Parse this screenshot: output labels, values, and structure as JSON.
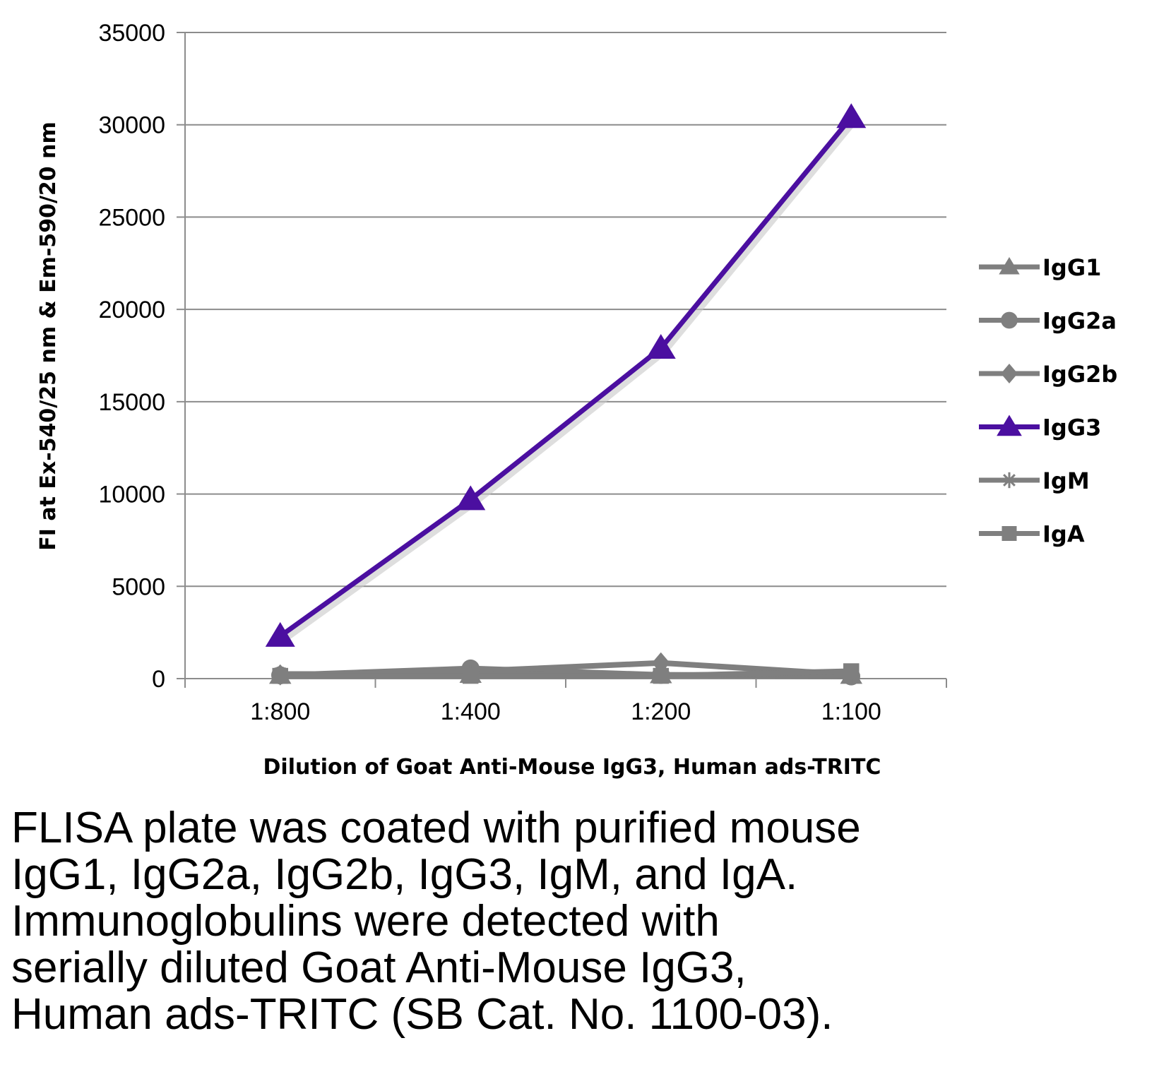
{
  "chart_data": {
    "type": "line",
    "categories": [
      "1:800",
      "1:400",
      "1:200",
      "1:100"
    ],
    "ylabel": "FI at Ex-540/25 nm & Em-590/20 nm",
    "xlabel": "Dilution of Goat Anti-Mouse IgG3, Human ads-TRITC",
    "ylim": [
      0,
      35000
    ],
    "yticks": [
      "0",
      "5000",
      "10000",
      "15000",
      "20000",
      "25000",
      "30000",
      "35000"
    ],
    "grid": true,
    "legend_position": "right",
    "series": [
      {
        "name": "IgG1",
        "marker": "triangle",
        "color": "#7f7f7f",
        "values": [
          150,
          200,
          180,
          150
        ]
      },
      {
        "name": "IgG2a",
        "marker": "circle",
        "color": "#7f7f7f",
        "values": [
          180,
          550,
          200,
          120
        ]
      },
      {
        "name": "IgG2b",
        "marker": "diamond",
        "color": "#7f7f7f",
        "values": [
          200,
          400,
          850,
          220
        ]
      },
      {
        "name": "IgG3",
        "marker": "triangle",
        "color": "#4b0fa0",
        "values": [
          2300,
          9700,
          17900,
          30400
        ]
      },
      {
        "name": "IgM",
        "marker": "star",
        "color": "#7f7f7f",
        "values": [
          250,
          250,
          200,
          200
        ]
      },
      {
        "name": "IgA",
        "marker": "square",
        "color": "#7f7f7f",
        "values": [
          150,
          150,
          150,
          400
        ]
      }
    ]
  },
  "caption": [
    "FLISA plate was coated with purified mouse",
    "IgG1, IgG2a, IgG2b, IgG3, IgM, and IgA.",
    "Immunoglobulins were detected with",
    "serially diluted Goat Anti-Mouse IgG3,",
    "Human ads-TRITC (SB Cat. No. 1100-03)."
  ]
}
